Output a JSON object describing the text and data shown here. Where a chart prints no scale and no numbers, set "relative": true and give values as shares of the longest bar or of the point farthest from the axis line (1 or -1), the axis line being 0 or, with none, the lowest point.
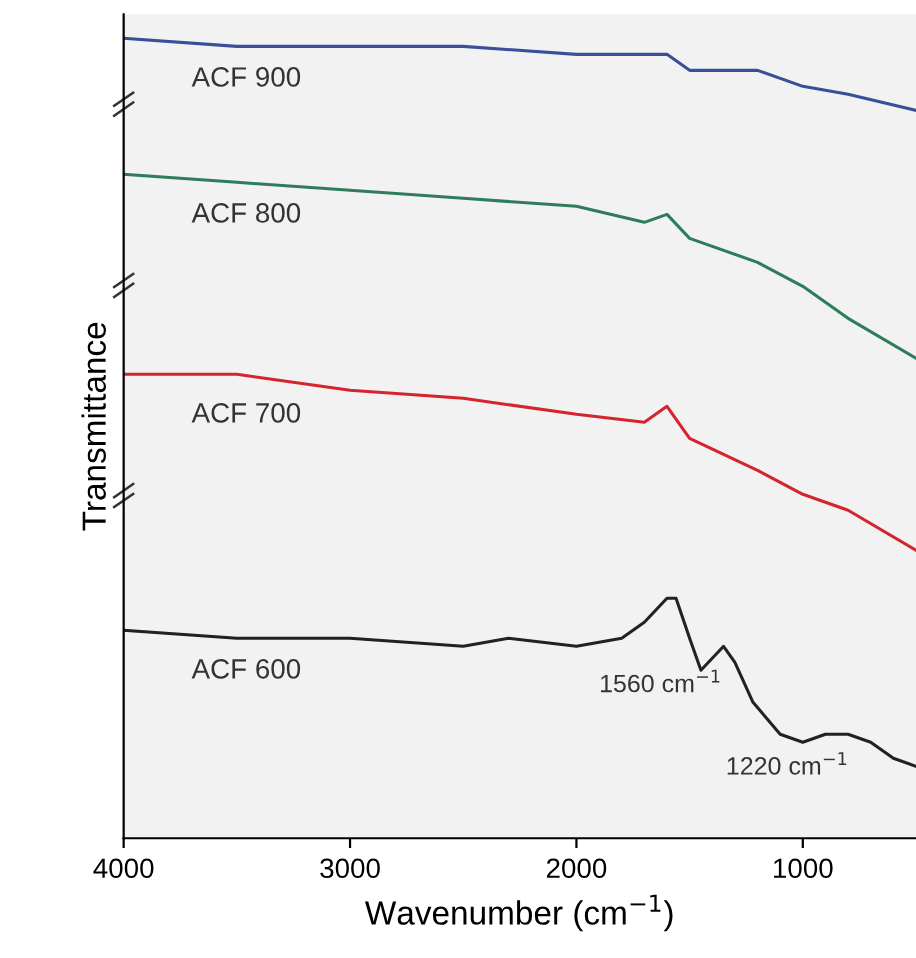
{
  "chart_data": {
    "type": "line",
    "relative": true,
    "xlabel": "Wavenumber (cm$^{−1}$)",
    "ylabel": "Transmittance",
    "xlim": [
      4000,
      500
    ],
    "xticks": [
      4000,
      3000,
      2000,
      1000
    ],
    "grid": false,
    "marker": "none",
    "line_style": "solid",
    "tick_labels": "x",
    "series": [
      {
        "name": "ACF 900",
        "color": "#3a4f9a",
        "x": [
          4000,
          3500,
          3000,
          2500,
          2000,
          1700,
          1600,
          1500,
          1200,
          1000,
          800,
          500
        ],
        "values": [
          1.0,
          0.99,
          0.99,
          0.99,
          0.98,
          0.98,
          0.98,
          0.96,
          0.96,
          0.94,
          0.93,
          0.91
        ]
      },
      {
        "name": "ACF 800",
        "color": "#2e7d5a",
        "x": [
          4000,
          3500,
          3000,
          2500,
          2000,
          1700,
          1600,
          1500,
          1200,
          1000,
          800,
          500
        ],
        "values": [
          0.83,
          0.82,
          0.81,
          0.8,
          0.79,
          0.77,
          0.78,
          0.75,
          0.72,
          0.69,
          0.65,
          0.6
        ]
      },
      {
        "name": "ACF 700",
        "color": "#d4242e",
        "x": [
          4000,
          3500,
          3000,
          2500,
          2000,
          1700,
          1600,
          1500,
          1200,
          1000,
          800,
          500
        ],
        "values": [
          0.58,
          0.58,
          0.56,
          0.55,
          0.53,
          0.52,
          0.54,
          0.5,
          0.46,
          0.43,
          0.41,
          0.36
        ]
      },
      {
        "name": "ACF 600",
        "color": "#222222",
        "x": [
          4000,
          3500,
          3000,
          2500,
          2300,
          2000,
          1800,
          1700,
          1600,
          1560,
          1500,
          1450,
          1350,
          1300,
          1220,
          1100,
          1000,
          900,
          800,
          700,
          600,
          500
        ],
        "values": [
          0.26,
          0.25,
          0.25,
          0.24,
          0.25,
          0.24,
          0.25,
          0.27,
          0.3,
          0.3,
          0.25,
          0.21,
          0.24,
          0.22,
          0.17,
          0.13,
          0.12,
          0.13,
          0.13,
          0.12,
          0.1,
          0.09
        ]
      }
    ],
    "annotations": [
      "1560 cm$^{−1}$",
      "1220 cm$^{−1}$"
    ]
  }
}
